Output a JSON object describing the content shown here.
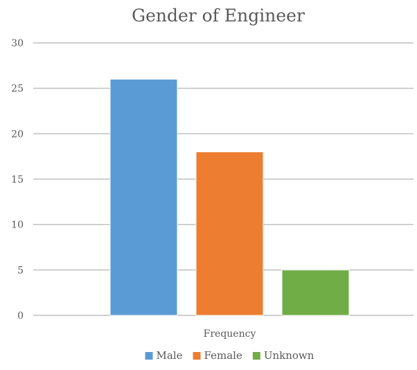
{
  "chart_data": {
    "type": "bar",
    "title": "Gender of Engineer",
    "xlabel": "",
    "ylabel": "",
    "categories": [
      "Frequency"
    ],
    "series": [
      {
        "name": "Male",
        "values": [
          26
        ],
        "color": "#5B9BD5"
      },
      {
        "name": "Female",
        "values": [
          18
        ],
        "color": "#ED7D31"
      },
      {
        "name": "Unknown",
        "values": [
          5
        ],
        "color": "#70AD47"
      }
    ],
    "ylim": [
      0,
      30
    ],
    "yticks": [
      0,
      5,
      10,
      15,
      20,
      25,
      30
    ],
    "grid": true,
    "legend_position": "bottom",
    "gridline_color": "#BFBFBF"
  }
}
